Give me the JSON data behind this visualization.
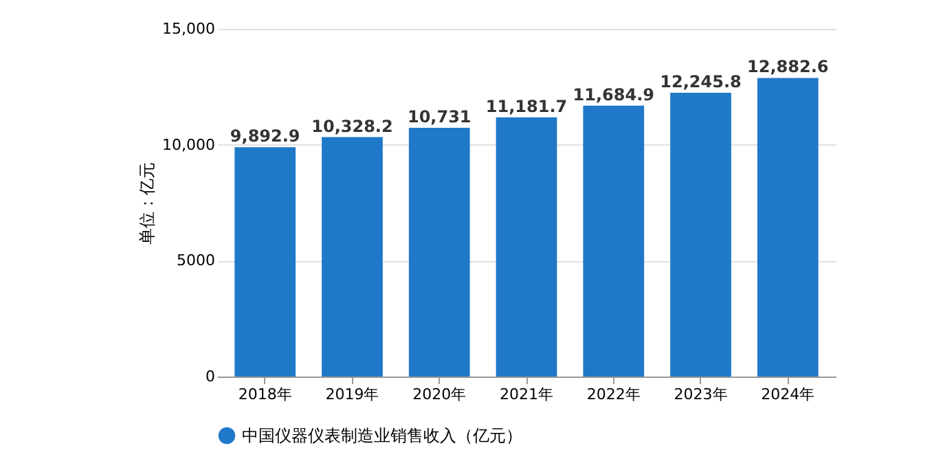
{
  "chart_data": {
    "type": "bar",
    "ylabel": "单位：亿元",
    "categories": [
      "2018年",
      "2019年",
      "2020年",
      "2021年",
      "2022年",
      "2023年",
      "2024年"
    ],
    "series": [
      {
        "name": "中国仪器仪表制造业销售收入（亿元）",
        "color": "#1f78c8",
        "values": [
          9892.9,
          10328.2,
          10731,
          11181.7,
          11684.9,
          12245.8,
          12882.6
        ]
      }
    ],
    "value_labels": [
      "9,892.9",
      "10,328.2",
      "10,731",
      "11,181.7",
      "11,684.9",
      "12,245.8",
      "12,882.6"
    ],
    "ylim": [
      0,
      15000
    ],
    "yticks": [
      0,
      5000,
      {
        "value": 10000,
        "label": "10,000"
      },
      {
        "value": 15000,
        "label": "15,000"
      }
    ],
    "grid": "y",
    "legend": "bottom",
    "marker": "circle"
  }
}
